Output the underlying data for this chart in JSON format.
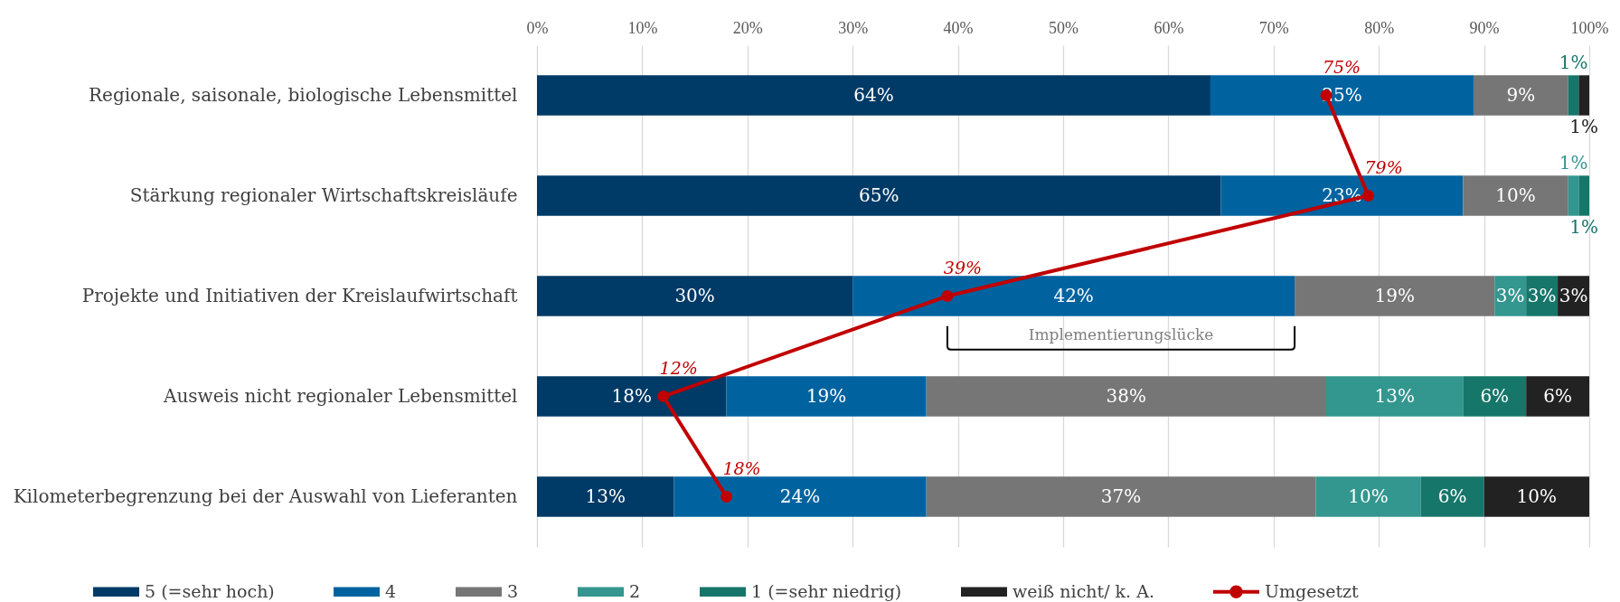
{
  "chart_data": {
    "type": "bar",
    "orientation": "horizontal",
    "stacked": true,
    "grid": "x",
    "legend": "bottom",
    "marker": "circle",
    "categories": [
      "Regionale, saisonale, biologische Lebensmittel",
      "Stärkung regionaler Wirtschaftskreisläufe",
      "Projekte und Initiativen der Kreislaufwirtschaft",
      "Ausweis nicht regionaler Lebensmittel",
      "Kilometerbegrenzung bei der Auswahl von Lieferanten"
    ],
    "xlim": [
      0,
      100
    ],
    "xticks": [
      {
        "value": 0,
        "label": "0%"
      },
      {
        "value": 10,
        "label": "10%"
      },
      {
        "value": 20,
        "label": "20%"
      },
      {
        "value": 30,
        "label": "30%"
      },
      {
        "value": 40,
        "label": "40%"
      },
      {
        "value": 50,
        "label": "50%"
      },
      {
        "value": 60,
        "label": "60%"
      },
      {
        "value": 70,
        "label": "70%"
      },
      {
        "value": 80,
        "label": "80%"
      },
      {
        "value": 90,
        "label": "90%"
      },
      {
        "value": 100,
        "label": "100%"
      }
    ],
    "series": [
      {
        "name": "5 (=sehr hoch)",
        "color": "#003a66",
        "values": [
          64,
          65,
          30,
          18,
          13
        ],
        "value_labels": [
          "64%",
          "65%",
          "30%",
          "18%",
          "13%"
        ]
      },
      {
        "name": "4",
        "color": "#0063a0",
        "values": [
          25,
          23,
          42,
          19,
          24
        ],
        "value_labels": [
          "25%",
          "23%",
          "42%",
          "19%",
          "24%"
        ]
      },
      {
        "name": "3",
        "color": "#767676",
        "values": [
          9,
          10,
          19,
          38,
          37
        ],
        "value_labels": [
          "9%",
          "10%",
          "19%",
          "38%",
          "37%"
        ]
      },
      {
        "name": "2",
        "color": "#33968f",
        "values": [
          null,
          1,
          3,
          13,
          10
        ],
        "value_labels": [
          null,
          "1%",
          "3%",
          "13%",
          "10%"
        ]
      },
      {
        "name": "1 (=sehr niedrig)",
        "color": "#17766a",
        "values": [
          1,
          1,
          3,
          6,
          6
        ],
        "value_labels": [
          "1%",
          "1%",
          "3%",
          "6%",
          "6%"
        ]
      },
      {
        "name": "weiß nicht/ k. A.",
        "color": "#222222",
        "values": [
          1,
          null,
          3,
          6,
          10
        ],
        "value_labels": [
          "1%",
          null,
          "3%",
          "6%",
          "10%"
        ]
      },
      {
        "name": "Umgesetzt",
        "type": "line",
        "color": "#c00000",
        "values": [
          75,
          79,
          39,
          12,
          18
        ],
        "value_labels": [
          "75%",
          "79%",
          "39%",
          "12%",
          "18%"
        ]
      }
    ],
    "annotations": [
      "Implementierungslücke"
    ]
  }
}
